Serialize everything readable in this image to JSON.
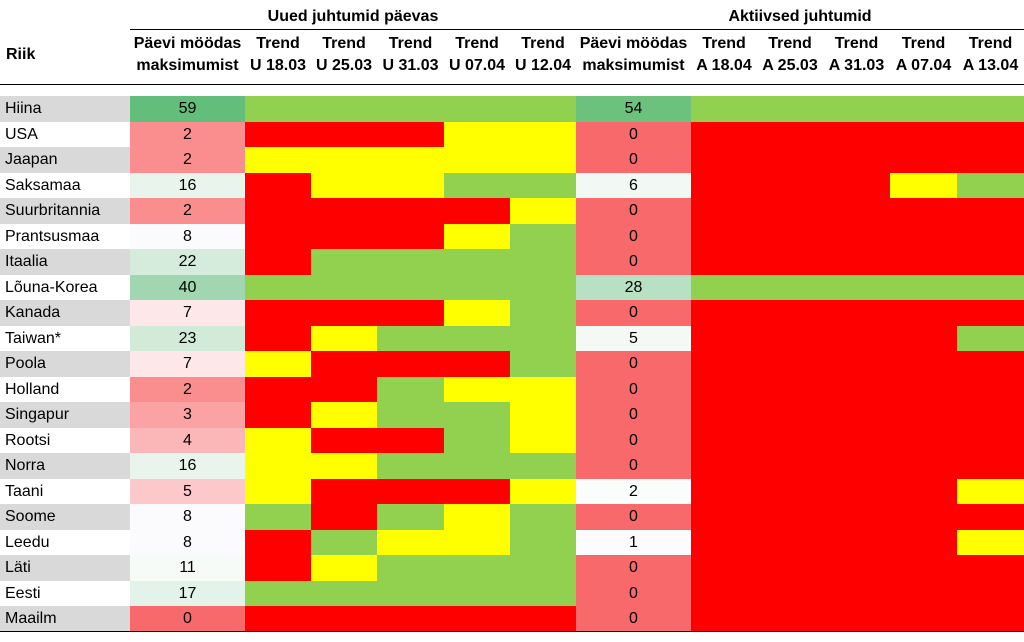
{
  "groups": {
    "new_cases": "Uued juhtumid päevas",
    "active_cases": "Aktiivsed juhtumid"
  },
  "country_header": "Riik",
  "new_columns": [
    {
      "l1": "Päevi möödas",
      "l2": "maksimumist"
    },
    {
      "l1": "Trend",
      "l2": "U 18.03"
    },
    {
      "l1": "Trend",
      "l2": "U 25.03"
    },
    {
      "l1": "Trend",
      "l2": "U 31.03"
    },
    {
      "l1": "Trend",
      "l2": "U 07.04"
    },
    {
      "l1": "Trend",
      "l2": "U 12.04"
    }
  ],
  "active_columns": [
    {
      "l1": "Päevi möödas",
      "l2": "maksimumist"
    },
    {
      "l1": "Trend",
      "l2": "A 18.04"
    },
    {
      "l1": "Trend",
      "l2": "A 25.03"
    },
    {
      "l1": "Trend",
      "l2": "A 31.03"
    },
    {
      "l1": "Trend",
      "l2": "A 07.04"
    },
    {
      "l1": "Trend",
      "l2": "A 13.04"
    }
  ],
  "colors": {
    "G": "#92d050",
    "Y": "#ffff00",
    "R": "#ff0000",
    "row_gray": "#d9d9d9"
  },
  "rows": [
    {
      "country": "Hiina",
      "new_days": "59",
      "new_color": "#63be7b",
      "new_trend": [
        "G",
        "G",
        "G",
        "G",
        "G"
      ],
      "act_days": "54",
      "act_color": "#6cc17c",
      "act_trend": [
        "G",
        "G",
        "G",
        "G",
        "G"
      ]
    },
    {
      "country": "USA",
      "new_days": "2",
      "new_color": "#fa8e8f",
      "new_trend": [
        "R",
        "R",
        "R",
        "Y",
        "Y"
      ],
      "act_days": "0",
      "act_color": "#f8696b",
      "act_trend": [
        "R",
        "R",
        "R",
        "R",
        "R"
      ]
    },
    {
      "country": "Jaapan",
      "new_days": "2",
      "new_color": "#fa8e8f",
      "new_trend": [
        "Y",
        "Y",
        "Y",
        "Y",
        "Y"
      ],
      "act_days": "0",
      "act_color": "#f8696b",
      "act_trend": [
        "R",
        "R",
        "R",
        "R",
        "R"
      ]
    },
    {
      "country": "Saksamaa",
      "new_days": "16",
      "new_color": "#e9f5ec",
      "new_trend": [
        "R",
        "Y",
        "Y",
        "G",
        "G"
      ],
      "act_days": "6",
      "act_color": "#f2f8f4",
      "act_trend": [
        "R",
        "R",
        "R",
        "Y",
        "G"
      ]
    },
    {
      "country": "Suurbritannia",
      "new_days": "2",
      "new_color": "#fa8e8f",
      "new_trend": [
        "R",
        "R",
        "R",
        "R",
        "Y"
      ],
      "act_days": "0",
      "act_color": "#f8696b",
      "act_trend": [
        "R",
        "R",
        "R",
        "R",
        "R"
      ]
    },
    {
      "country": "Prantsusmaa",
      "new_days": "8",
      "new_color": "#fbfbfd",
      "new_trend": [
        "R",
        "R",
        "R",
        "Y",
        "G"
      ],
      "act_days": "0",
      "act_color": "#f8696b",
      "act_trend": [
        "R",
        "R",
        "R",
        "R",
        "R"
      ]
    },
    {
      "country": "Itaalia",
      "new_days": "22",
      "new_color": "#d5ecdc",
      "new_trend": [
        "R",
        "G",
        "G",
        "G",
        "G"
      ],
      "act_days": "0",
      "act_color": "#f8696b",
      "act_trend": [
        "R",
        "R",
        "R",
        "R",
        "R"
      ]
    },
    {
      "country": "Lõuna-Korea",
      "new_days": "40",
      "new_color": "#a1d7b0",
      "new_trend": [
        "G",
        "G",
        "G",
        "G",
        "G"
      ],
      "act_days": "28",
      "act_color": "#b8e0c3",
      "act_trend": [
        "G",
        "G",
        "G",
        "G",
        "G"
      ]
    },
    {
      "country": "Kanada",
      "new_days": "7",
      "new_color": "#fde7e8",
      "new_trend": [
        "R",
        "R",
        "R",
        "Y",
        "G"
      ],
      "act_days": "0",
      "act_color": "#f8696b",
      "act_trend": [
        "R",
        "R",
        "R",
        "R",
        "R"
      ]
    },
    {
      "country": "Taiwan*",
      "new_days": "23",
      "new_color": "#d2ebd9",
      "new_trend": [
        "R",
        "Y",
        "G",
        "G",
        "G"
      ],
      "act_days": "5",
      "act_color": "#f4f9f6",
      "act_trend": [
        "R",
        "R",
        "R",
        "R",
        "G"
      ]
    },
    {
      "country": "Poola",
      "new_days": "7",
      "new_color": "#fde7e8",
      "new_trend": [
        "Y",
        "R",
        "R",
        "R",
        "G"
      ],
      "act_days": "0",
      "act_color": "#f8696b",
      "act_trend": [
        "R",
        "R",
        "R",
        "R",
        "R"
      ]
    },
    {
      "country": "Holland",
      "new_days": "2",
      "new_color": "#fa8e8f",
      "new_trend": [
        "R",
        "R",
        "G",
        "Y",
        "Y"
      ],
      "act_days": "0",
      "act_color": "#f8696b",
      "act_trend": [
        "R",
        "R",
        "R",
        "R",
        "R"
      ]
    },
    {
      "country": "Singapur",
      "new_days": "3",
      "new_color": "#fba3a4",
      "new_trend": [
        "R",
        "Y",
        "G",
        "G",
        "Y"
      ],
      "act_days": "0",
      "act_color": "#f8696b",
      "act_trend": [
        "R",
        "R",
        "R",
        "R",
        "R"
      ]
    },
    {
      "country": "Rootsi",
      "new_days": "4",
      "new_color": "#fbb6b7",
      "new_trend": [
        "Y",
        "R",
        "R",
        "G",
        "Y"
      ],
      "act_days": "0",
      "act_color": "#f8696b",
      "act_trend": [
        "R",
        "R",
        "R",
        "R",
        "R"
      ]
    },
    {
      "country": "Norra",
      "new_days": "16",
      "new_color": "#e9f5ec",
      "new_trend": [
        "Y",
        "Y",
        "G",
        "G",
        "G"
      ],
      "act_days": "0",
      "act_color": "#f8696b",
      "act_trend": [
        "R",
        "R",
        "R",
        "R",
        "R"
      ]
    },
    {
      "country": "Taani",
      "new_days": "5",
      "new_color": "#fcc8c9",
      "new_trend": [
        "Y",
        "R",
        "R",
        "R",
        "Y"
      ],
      "act_days": "2",
      "act_color": "#fbfcfc",
      "act_trend": [
        "R",
        "R",
        "R",
        "R",
        "Y"
      ]
    },
    {
      "country": "Soome",
      "new_days": "8",
      "new_color": "#fbfbfd",
      "new_trend": [
        "G",
        "R",
        "G",
        "Y",
        "G"
      ],
      "act_days": "0",
      "act_color": "#f8696b",
      "act_trend": [
        "R",
        "R",
        "R",
        "R",
        "R"
      ]
    },
    {
      "country": "Leedu",
      "new_days": "8",
      "new_color": "#fbfbfd",
      "new_trend": [
        "R",
        "G",
        "Y",
        "Y",
        "G"
      ],
      "act_days": "1",
      "act_color": "#fcfcff",
      "act_trend": [
        "R",
        "R",
        "R",
        "R",
        "Y"
      ]
    },
    {
      "country": "Läti",
      "new_days": "11",
      "new_color": "#f6fbf8",
      "new_trend": [
        "R",
        "Y",
        "G",
        "G",
        "G"
      ],
      "act_days": "0",
      "act_color": "#f8696b",
      "act_trend": [
        "R",
        "R",
        "R",
        "R",
        "R"
      ]
    },
    {
      "country": "Eesti",
      "new_days": "17",
      "new_color": "#e4f3e9",
      "new_trend": [
        "G",
        "G",
        "G",
        "G",
        "G"
      ],
      "act_days": "0",
      "act_color": "#f8696b",
      "act_trend": [
        "R",
        "R",
        "R",
        "R",
        "R"
      ]
    },
    {
      "country": "Maailm",
      "new_days": "0",
      "new_color": "#f8696b",
      "new_trend": [
        "R",
        "R",
        "R",
        "R",
        "R"
      ],
      "act_days": "0",
      "act_color": "#f8696b",
      "act_trend": [
        "R",
        "R",
        "R",
        "R",
        "R"
      ]
    }
  ]
}
